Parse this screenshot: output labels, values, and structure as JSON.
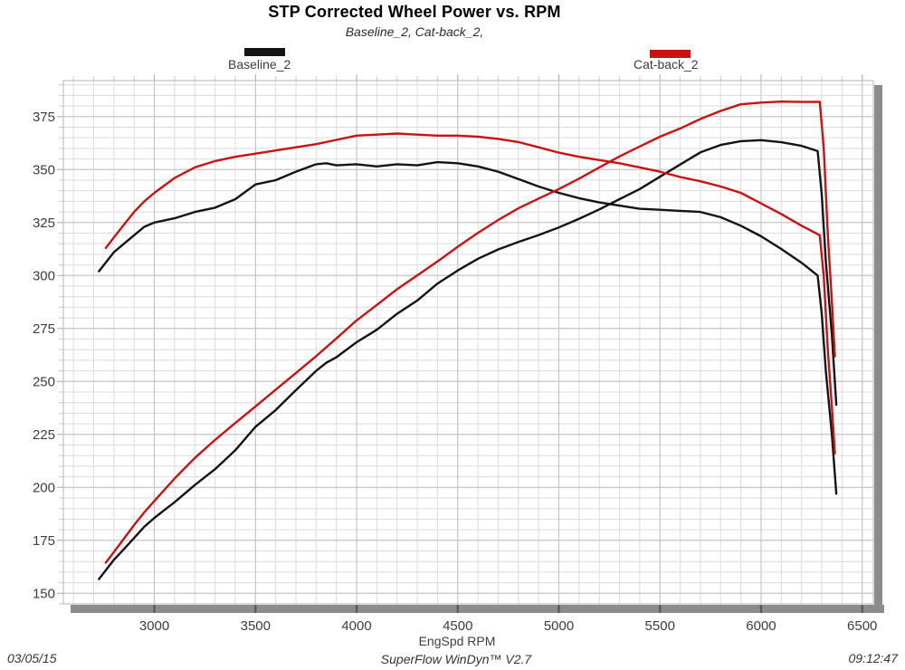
{
  "header": {
    "title": "STP Corrected Wheel Power vs. RPM",
    "subtitle": "Baseline_2, Cat-back_2,"
  },
  "legend": {
    "items": [
      {
        "label": "Baseline_2",
        "color": "#141414"
      },
      {
        "label": "Cat-back_2",
        "color": "#cc1111"
      }
    ]
  },
  "chart_data": {
    "type": "line",
    "title": "STP Corrected Wheel Power vs. RPM",
    "subtitle": "Baseline_2, Cat-back_2,",
    "xlabel": "EngSpd RPM",
    "ylabel": "",
    "grid": "on",
    "legend_position": "top",
    "x_axis": {
      "min": 2550,
      "max": 6555,
      "major_ticks": [
        3000,
        3500,
        4000,
        4500,
        5000,
        5500,
        6000,
        6500
      ],
      "minor_step": 100
    },
    "y_axis": {
      "min": 145,
      "max": 392,
      "major_ticks": [
        150,
        175,
        200,
        225,
        250,
        275,
        300,
        325,
        350,
        375
      ],
      "minor_step": 5
    },
    "colors": {
      "baseline": "#141414",
      "catback": "#cc1111",
      "grid_minor": "#dcdcdc",
      "grid_major": "#c0c0c0",
      "shadow_band": "#8c8c8c",
      "band_tick": "#5a5a5a"
    },
    "series": [
      {
        "name": "Baseline_2 (torque)",
        "run": "Baseline_2",
        "color": "#141414",
        "points": [
          [
            2726,
            302
          ],
          [
            2800,
            311
          ],
          [
            2850,
            315
          ],
          [
            2900,
            319
          ],
          [
            2950,
            323
          ],
          [
            3000,
            325
          ],
          [
            3050,
            326
          ],
          [
            3100,
            327
          ],
          [
            3200,
            330
          ],
          [
            3300,
            332
          ],
          [
            3400,
            336
          ],
          [
            3500,
            343
          ],
          [
            3600,
            345
          ],
          [
            3700,
            349
          ],
          [
            3800,
            352.5
          ],
          [
            3850,
            353
          ],
          [
            3900,
            352
          ],
          [
            4000,
            352.5
          ],
          [
            4100,
            351.5
          ],
          [
            4200,
            352.5
          ],
          [
            4300,
            352
          ],
          [
            4400,
            353.5
          ],
          [
            4500,
            353
          ],
          [
            4600,
            351.5
          ],
          [
            4700,
            349
          ],
          [
            4800,
            345.5
          ],
          [
            4900,
            342
          ],
          [
            5000,
            339
          ],
          [
            5100,
            336.5
          ],
          [
            5200,
            334.5
          ],
          [
            5300,
            333
          ],
          [
            5400,
            331.5
          ],
          [
            5500,
            331
          ],
          [
            5600,
            330.5
          ],
          [
            5700,
            330
          ],
          [
            5800,
            327.5
          ],
          [
            5900,
            323.5
          ],
          [
            6000,
            318.5
          ],
          [
            6100,
            312.5
          ],
          [
            6200,
            306
          ],
          [
            6280,
            300
          ],
          [
            6300,
            282
          ],
          [
            6320,
            255
          ],
          [
            6350,
            225
          ],
          [
            6372,
            197
          ]
        ]
      },
      {
        "name": "Baseline_2 (power)",
        "run": "Baseline_2",
        "color": "#141414",
        "points": [
          [
            2726,
            156.7
          ],
          [
            2800,
            165.8
          ],
          [
            2850,
            170.9
          ],
          [
            2900,
            176.1
          ],
          [
            2950,
            181.4
          ],
          [
            3000,
            185.6
          ],
          [
            3050,
            189.3
          ],
          [
            3100,
            193
          ],
          [
            3200,
            201.1
          ],
          [
            3300,
            208.6
          ],
          [
            3400,
            217.5
          ],
          [
            3500,
            228.6
          ],
          [
            3600,
            236.5
          ],
          [
            3700,
            245.9
          ],
          [
            3800,
            255
          ],
          [
            3850,
            258.8
          ],
          [
            3900,
            261.4
          ],
          [
            4000,
            268.5
          ],
          [
            4100,
            274.4
          ],
          [
            4200,
            281.9
          ],
          [
            4300,
            288.2
          ],
          [
            4400,
            296.2
          ],
          [
            4500,
            302.4
          ],
          [
            4600,
            307.9
          ],
          [
            4700,
            312.3
          ],
          [
            4800,
            315.8
          ],
          [
            4900,
            319.1
          ],
          [
            5000,
            322.7
          ],
          [
            5100,
            326.8
          ],
          [
            5200,
            331.2
          ],
          [
            5300,
            336
          ],
          [
            5400,
            340.8
          ],
          [
            5500,
            346.6
          ],
          [
            5600,
            352.4
          ],
          [
            5700,
            358.1
          ],
          [
            5800,
            361.6
          ],
          [
            5900,
            363.4
          ],
          [
            6000,
            363.9
          ],
          [
            6100,
            362.9
          ],
          [
            6200,
            361.2
          ],
          [
            6280,
            358.7
          ],
          [
            6300,
            338.3
          ],
          [
            6320,
            306.8
          ],
          [
            6350,
            272
          ],
          [
            6372,
            239
          ]
        ]
      },
      {
        "name": "Cat-back_2 (torque)",
        "run": "Cat-back_2",
        "color": "#cc1111",
        "points": [
          [
            2760,
            313
          ],
          [
            2800,
            318
          ],
          [
            2850,
            324
          ],
          [
            2900,
            330
          ],
          [
            2950,
            335
          ],
          [
            3000,
            339
          ],
          [
            3100,
            346
          ],
          [
            3200,
            351
          ],
          [
            3300,
            354
          ],
          [
            3400,
            356
          ],
          [
            3500,
            357.5
          ],
          [
            3600,
            359
          ],
          [
            3700,
            360.5
          ],
          [
            3800,
            362
          ],
          [
            3900,
            364
          ],
          [
            4000,
            366
          ],
          [
            4100,
            366.5
          ],
          [
            4200,
            367
          ],
          [
            4300,
            366.5
          ],
          [
            4400,
            366
          ],
          [
            4500,
            366
          ],
          [
            4600,
            365.5
          ],
          [
            4700,
            364.5
          ],
          [
            4800,
            363
          ],
          [
            4900,
            360.5
          ],
          [
            5000,
            358
          ],
          [
            5100,
            356
          ],
          [
            5200,
            354.5
          ],
          [
            5300,
            353
          ],
          [
            5400,
            351
          ],
          [
            5500,
            349
          ],
          [
            5600,
            346.5
          ],
          [
            5700,
            344.5
          ],
          [
            5800,
            342
          ],
          [
            5900,
            339
          ],
          [
            6000,
            334
          ],
          [
            6100,
            329
          ],
          [
            6200,
            323.5
          ],
          [
            6290,
            319
          ],
          [
            6310,
            300
          ],
          [
            6330,
            265
          ],
          [
            6350,
            238
          ],
          [
            6365,
            216
          ]
        ]
      },
      {
        "name": "Cat-back_2 (power)",
        "run": "Cat-back_2",
        "color": "#cc1111",
        "points": [
          [
            2760,
            164.5
          ],
          [
            2800,
            169.5
          ],
          [
            2850,
            175.8
          ],
          [
            2900,
            182.2
          ],
          [
            2950,
            188.2
          ],
          [
            3000,
            193.6
          ],
          [
            3100,
            204.2
          ],
          [
            3200,
            213.9
          ],
          [
            3300,
            222.4
          ],
          [
            3400,
            230.4
          ],
          [
            3500,
            238.2
          ],
          [
            3600,
            246.1
          ],
          [
            3700,
            254
          ],
          [
            3800,
            261.9
          ],
          [
            3900,
            270.3
          ],
          [
            4000,
            278.8
          ],
          [
            4100,
            286.1
          ],
          [
            4200,
            293.5
          ],
          [
            4300,
            300.1
          ],
          [
            4400,
            306.6
          ],
          [
            4500,
            313.6
          ],
          [
            4600,
            320.1
          ],
          [
            4700,
            326.2
          ],
          [
            4800,
            331.7
          ],
          [
            4900,
            336.3
          ],
          [
            5000,
            340.8
          ],
          [
            5100,
            345.7
          ],
          [
            5200,
            351
          ],
          [
            5300,
            356.2
          ],
          [
            5400,
            360.9
          ],
          [
            5500,
            365.5
          ],
          [
            5600,
            369.4
          ],
          [
            5700,
            373.9
          ],
          [
            5800,
            377.7
          ],
          [
            5900,
            380.8
          ],
          [
            6000,
            381.6
          ],
          [
            6100,
            382.1
          ],
          [
            6200,
            381.9
          ],
          [
            6290,
            382
          ],
          [
            6310,
            360.4
          ],
          [
            6330,
            319.4
          ],
          [
            6350,
            287.8
          ],
          [
            6365,
            261.8
          ]
        ]
      }
    ]
  },
  "footer": {
    "date": "03/05/15",
    "software": "SuperFlow WinDyn™ V2.7",
    "time": "09:12:47"
  }
}
